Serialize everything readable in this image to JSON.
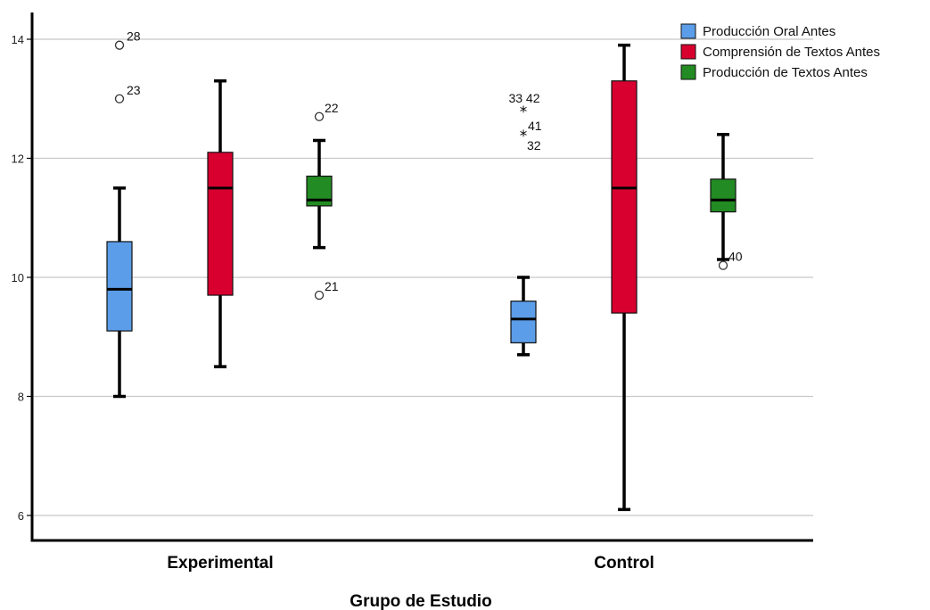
{
  "chart_data": {
    "type": "boxplot",
    "xlabel": "Grupo de Estudio",
    "ylabel": "",
    "ylim": [
      5.5,
      14.4
    ],
    "yticks": [
      6,
      8,
      10,
      12,
      14
    ],
    "grid": true,
    "legend_position": "top-right",
    "categories": [
      "Experimental",
      "Control"
    ],
    "series": [
      {
        "name": "Producción Oral Antes",
        "color": "#5b9de8",
        "boxes": [
          {
            "category": "Experimental",
            "min": 8.0,
            "q1": 9.1,
            "median": 9.8,
            "q3": 10.6,
            "max": 11.5,
            "outliers": [
              {
                "value": 13.9,
                "label": "28",
                "kind": "circle"
              },
              {
                "value": 13.0,
                "label": "23",
                "kind": "circle"
              }
            ]
          },
          {
            "category": "Control",
            "min": 8.7,
            "q1": 8.9,
            "median": 9.3,
            "q3": 9.6,
            "max": 10.0,
            "outliers": [
              {
                "value": 12.8,
                "label": "33 42",
                "kind": "star"
              },
              {
                "value": 12.4,
                "label": "41",
                "kind": "star"
              }
            ],
            "extra_labels": [
              "32"
            ]
          }
        ]
      },
      {
        "name": "Comprensión de Textos Antes",
        "color": "#d8002f",
        "boxes": [
          {
            "category": "Experimental",
            "min": 8.5,
            "q1": 9.7,
            "median": 11.5,
            "q3": 12.1,
            "max": 13.3,
            "outliers": []
          },
          {
            "category": "Control",
            "min": 6.1,
            "q1": 9.4,
            "median": 11.5,
            "q3": 13.3,
            "max": 13.9,
            "outliers": []
          }
        ]
      },
      {
        "name": "Producción de Textos Antes",
        "color": "#238b23",
        "boxes": [
          {
            "category": "Experimental",
            "min": 10.5,
            "q1": 11.2,
            "median": 11.3,
            "q3": 11.7,
            "max": 12.3,
            "outliers": [
              {
                "value": 12.7,
                "label": "22",
                "kind": "circle"
              },
              {
                "value": 9.7,
                "label": "21",
                "kind": "circle"
              }
            ]
          },
          {
            "category": "Control",
            "min": 10.3,
            "q1": 11.1,
            "median": 11.3,
            "q3": 11.65,
            "max": 12.4,
            "outliers": [
              {
                "value": 10.2,
                "label": "40",
                "kind": "circle"
              }
            ]
          }
        ]
      }
    ]
  }
}
